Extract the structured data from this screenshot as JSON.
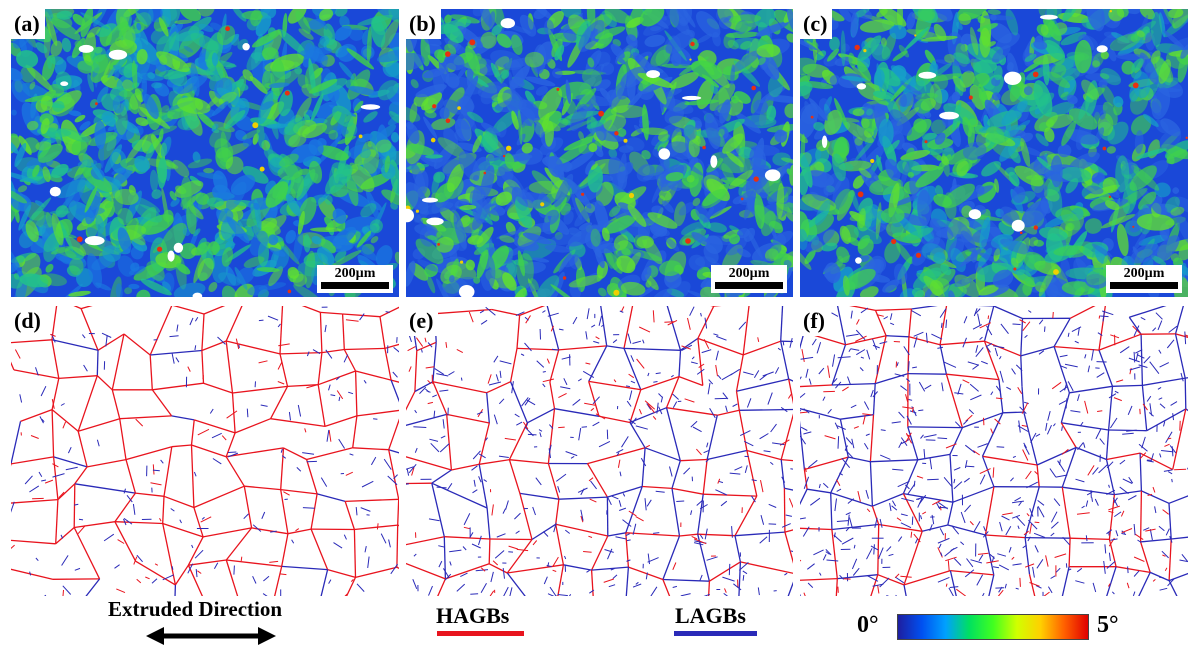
{
  "panels": [
    {
      "label": "(a)",
      "scale": "200µm",
      "kind": "map",
      "misorientation_level": "low"
    },
    {
      "label": "(b)",
      "scale": "200µm",
      "kind": "map",
      "misorientation_level": "high"
    },
    {
      "label": "(c)",
      "scale": "200µm",
      "kind": "map",
      "misorientation_level": "medium"
    },
    {
      "label": "(d)",
      "kind": "boundaries",
      "dominant_boundary": "HAGBs"
    },
    {
      "label": "(e)",
      "kind": "boundaries",
      "dominant_boundary": "mixed"
    },
    {
      "label": "(f)",
      "kind": "boundaries",
      "dominant_boundary": "LAGBs"
    }
  ],
  "legend": {
    "direction": "Extruded Direction",
    "hagb_label": "HAGBs",
    "lagb_label": "LAGBs",
    "hagb_color": "#e8141e",
    "lagb_color": "#2a2ab8",
    "colorbar_min": "0°",
    "colorbar_max": "5°"
  }
}
